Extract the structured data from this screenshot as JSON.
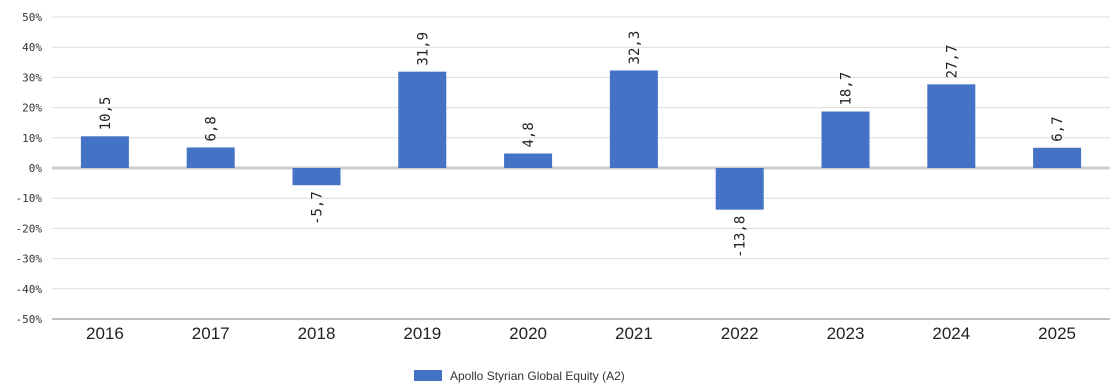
{
  "chart_data": {
    "type": "bar",
    "categories": [
      "2016",
      "2017",
      "2018",
      "2019",
      "2020",
      "2021",
      "2022",
      "2023",
      "2024",
      "2025"
    ],
    "series": [
      {
        "name": "Apollo Styrian Global Equity (A2)",
        "values": [
          10.5,
          6.8,
          -5.7,
          31.9,
          4.8,
          32.3,
          -13.8,
          18.7,
          27.7,
          6.7
        ],
        "data_labels": [
          "10,5",
          "6,8",
          "-5,7",
          "31,9",
          "4,8",
          "32,3",
          "-13,8",
          "18,7",
          "27,7",
          "6,7"
        ],
        "color": "#4472c4"
      }
    ],
    "ylim": [
      -50,
      50
    ],
    "y_ticks": [
      50,
      40,
      30,
      20,
      10,
      0,
      -10,
      -20,
      -30,
      -40,
      -50
    ],
    "y_tick_labels": [
      "50%",
      "40%",
      "30%",
      "20%",
      "10%",
      "0%",
      "-10%",
      "-20%",
      "-30%",
      "-40%",
      "-50%"
    ],
    "title": "",
    "xlabel": "",
    "ylabel": "",
    "grid": true,
    "legend_position": "bottom-center",
    "colors": {
      "bar": "#4472c4",
      "grid": "#dcdcdc",
      "zero_line": "#cccccc"
    }
  }
}
